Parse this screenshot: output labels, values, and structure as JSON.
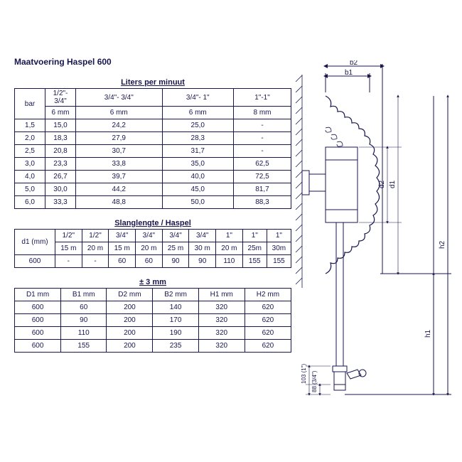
{
  "title": "Maatvoering Haspel 600",
  "section1": {
    "header": "Liters per minuut",
    "cols": [
      "bar",
      "1/2\"- 3/4\"\n6 mm",
      "3/4\"- 3/4\"\n6 mm",
      "3/4\"- 1\"\n6 mm",
      "1\"-1\"\n8 mm"
    ],
    "rows": [
      [
        "1,5",
        "15,0",
        "24,2",
        "25,0",
        "-"
      ],
      [
        "2,0",
        "18,3",
        "27,9",
        "28,3",
        "-"
      ],
      [
        "2,5",
        "20,8",
        "30,7",
        "31,7",
        "-"
      ],
      [
        "3,0",
        "23,3",
        "33,8",
        "35,0",
        "62,5"
      ],
      [
        "4,0",
        "26,7",
        "39,7",
        "40,0",
        "72,5"
      ],
      [
        "5,0",
        "30,0",
        "44,2",
        "45,0",
        "81,7"
      ],
      [
        "6,0",
        "33,3",
        "48,8",
        "50,0",
        "88,3"
      ]
    ]
  },
  "section2": {
    "header": "Slanglengte / Haspel",
    "cols": [
      "d1 (mm)",
      "1/2\"\n15 m",
      "1/2\"\n20 m",
      "3/4\"\n15 m",
      "3/4\"\n20 m",
      "3/4\"\n25 m",
      "3/4\"\n30 m",
      "1\"\n20 m",
      "1\"\n25m",
      "1\"\n30m"
    ],
    "rows": [
      [
        "600",
        "-",
        "-",
        "60",
        "60",
        "90",
        "90",
        "110",
        "155",
        "155"
      ]
    ]
  },
  "section3": {
    "header": "± 3 mm",
    "cols": [
      "D1 mm",
      "B1 mm",
      "D2 mm",
      "B2 mm",
      "H1 mm",
      "H2 mm"
    ],
    "rows": [
      [
        "600",
        "60",
        "200",
        "140",
        "320",
        "620"
      ],
      [
        "600",
        "90",
        "200",
        "170",
        "320",
        "620"
      ],
      [
        "600",
        "110",
        "200",
        "190",
        "320",
        "620"
      ],
      [
        "600",
        "155",
        "200",
        "235",
        "320",
        "620"
      ]
    ]
  },
  "diagram_labels": {
    "b1": "b1",
    "b2": "b2",
    "d1": "d1",
    "d2": "d2",
    "h1": "h1",
    "h2": "h2",
    "dim1": "103 (1\")",
    "dim2": "88 (3/4\")"
  },
  "colors": {
    "line": "#18164d",
    "bg": "#ffffff"
  }
}
